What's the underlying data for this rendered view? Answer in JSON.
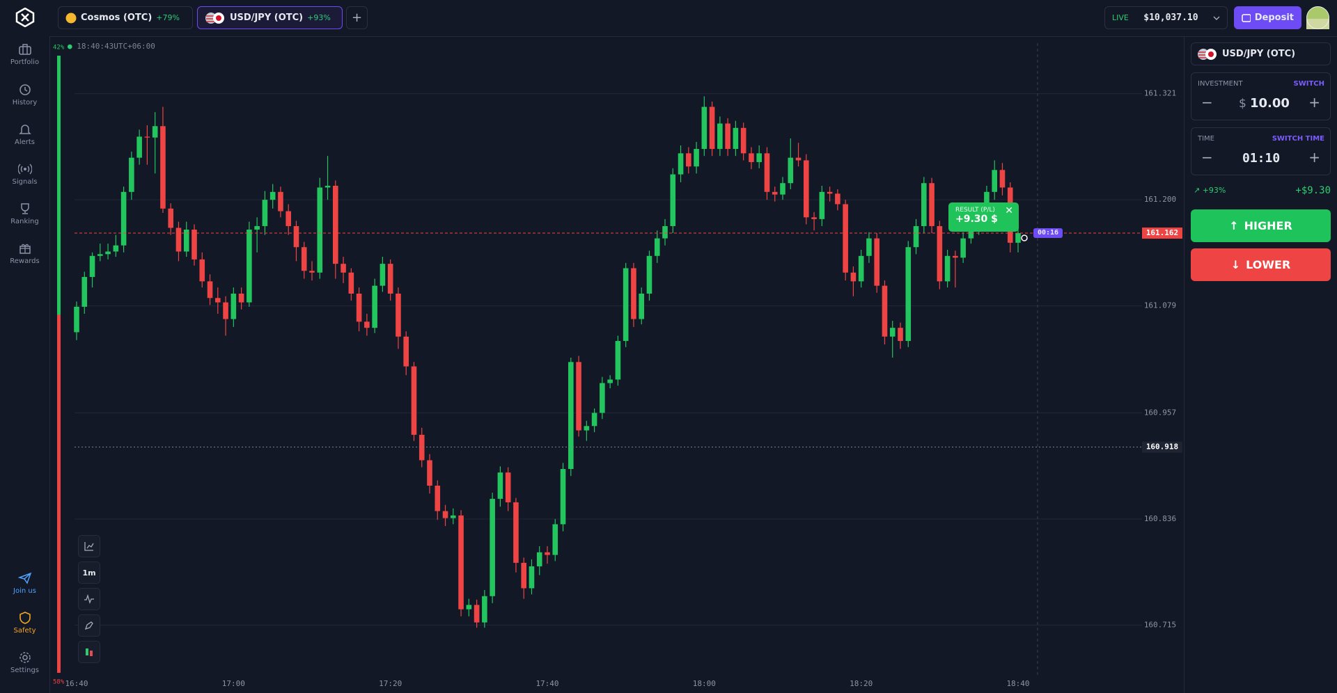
{
  "header": {
    "tabs": [
      {
        "name": "Cosmos (OTC)",
        "change": "+79%"
      },
      {
        "name": "USD/JPY (OTC)",
        "change": "+93%"
      }
    ],
    "account": "LIVE",
    "balance": "$10,037.10",
    "deposit": "Deposit"
  },
  "sidebar": {
    "top": [
      "Portfolio",
      "History",
      "Alerts",
      "Signals",
      "Ranking",
      "Rewards"
    ],
    "bottom": [
      "Join us",
      "Safety",
      "Settings"
    ]
  },
  "chart": {
    "type": "candlestick",
    "clock": "18:40:43UTC+06:00",
    "timeframe": "1m",
    "ylim": [
      160.655,
      161.385
    ],
    "yticks": [
      161.321,
      {
        "value": 161.2,
        "label": "161.200"
      },
      161.079,
      160.957,
      160.836,
      160.715
    ],
    "xticks": [
      "16:40",
      "17:00",
      "17:20",
      "17:40",
      "18:00",
      "18:20",
      "18:40"
    ],
    "current_price": 161.162,
    "marker_price": 160.918,
    "sentiment": {
      "up": {
        "value": 42,
        "label": "42%"
      },
      "down": {
        "value": 58,
        "label": "58%"
      }
    },
    "result": {
      "title": "RESULT (P/L)",
      "value": "+9.30 $"
    },
    "timer": "00:16",
    "ohlc": [
      [
        161.049,
        161.084,
        161.04,
        161.078
      ],
      [
        161.078,
        161.118,
        161.07,
        161.112
      ],
      [
        161.112,
        161.14,
        161.1,
        161.136
      ],
      [
        161.136,
        161.15,
        161.13,
        161.138
      ],
      [
        161.138,
        161.15,
        161.132,
        161.141
      ],
      [
        161.141,
        161.16,
        161.135,
        161.148
      ],
      [
        161.148,
        161.215,
        161.14,
        161.209
      ],
      [
        161.209,
        161.255,
        161.2,
        161.248
      ],
      [
        161.248,
        161.28,
        161.24,
        161.272
      ],
      [
        161.272,
        161.285,
        161.24,
        161.271
      ],
      [
        161.271,
        161.3,
        161.23,
        161.284
      ],
      [
        161.284,
        161.306,
        161.185,
        161.19
      ],
      [
        161.19,
        161.196,
        161.16,
        161.168
      ],
      [
        161.168,
        161.175,
        161.13,
        161.141
      ],
      [
        161.141,
        161.175,
        161.135,
        161.166
      ],
      [
        161.166,
        161.172,
        161.125,
        161.132
      ],
      [
        161.132,
        161.14,
        161.1,
        161.107
      ],
      [
        161.107,
        161.115,
        161.08,
        161.088
      ],
      [
        161.088,
        161.1,
        161.07,
        161.083
      ],
      [
        161.083,
        161.09,
        161.045,
        161.064
      ],
      [
        161.064,
        161.1,
        161.055,
        161.093
      ],
      [
        161.093,
        161.1,
        161.075,
        161.083
      ],
      [
        161.083,
        161.175,
        161.078,
        161.166
      ],
      [
        161.166,
        161.18,
        161.14,
        161.17
      ],
      [
        161.17,
        161.21,
        161.16,
        161.2
      ],
      [
        161.2,
        161.218,
        161.19,
        161.209
      ],
      [
        161.209,
        161.215,
        161.18,
        161.187
      ],
      [
        161.187,
        161.195,
        161.16,
        161.17
      ],
      [
        161.17,
        161.176,
        161.13,
        161.146
      ],
      [
        161.146,
        161.152,
        161.11,
        161.119
      ],
      [
        161.119,
        161.13,
        161.108,
        161.117
      ],
      [
        161.117,
        161.225,
        161.11,
        161.214
      ],
      [
        161.214,
        161.25,
        161.2,
        161.216
      ],
      [
        161.216,
        161.222,
        161.11,
        161.127
      ],
      [
        161.127,
        161.135,
        161.105,
        161.117
      ],
      [
        161.117,
        161.122,
        161.085,
        161.093
      ],
      [
        161.093,
        161.1,
        161.05,
        161.061
      ],
      [
        161.061,
        161.07,
        161.045,
        161.054
      ],
      [
        161.054,
        161.11,
        161.048,
        161.102
      ],
      [
        161.102,
        161.135,
        161.095,
        161.127
      ],
      [
        161.127,
        161.132,
        161.085,
        161.093
      ],
      [
        161.093,
        161.1,
        161.03,
        161.044
      ],
      [
        161.044,
        161.05,
        161.0,
        161.01
      ],
      [
        161.01,
        161.015,
        160.925,
        160.932
      ],
      [
        160.932,
        160.94,
        160.895,
        160.903
      ],
      [
        160.903,
        160.91,
        160.865,
        160.874
      ],
      [
        160.874,
        160.88,
        160.835,
        160.845
      ],
      [
        160.845,
        160.852,
        160.828,
        160.837
      ],
      [
        160.837,
        160.848,
        160.83,
        160.84
      ],
      [
        160.84,
        160.846,
        160.725,
        160.733
      ],
      [
        160.733,
        160.745,
        160.725,
        160.738
      ],
      [
        160.738,
        160.744,
        160.712,
        160.718
      ],
      [
        160.718,
        160.755,
        160.712,
        160.748
      ],
      [
        160.748,
        160.866,
        160.74,
        160.859
      ],
      [
        160.859,
        160.896,
        160.85,
        160.889
      ],
      [
        160.889,
        160.895,
        160.845,
        160.855
      ],
      [
        160.855,
        160.86,
        160.775,
        160.786
      ],
      [
        160.786,
        160.792,
        160.745,
        160.757
      ],
      [
        160.757,
        160.79,
        160.75,
        160.782
      ],
      [
        160.782,
        160.805,
        160.772,
        160.798
      ],
      [
        160.798,
        160.805,
        160.785,
        160.795
      ],
      [
        160.795,
        160.836,
        160.788,
        160.83
      ],
      [
        160.83,
        160.9,
        160.822,
        160.893
      ],
      [
        160.893,
        161.02,
        160.885,
        161.015
      ],
      [
        161.015,
        161.022,
        160.93,
        160.937
      ],
      [
        160.937,
        160.948,
        160.925,
        160.942
      ],
      [
        160.942,
        160.962,
        160.935,
        160.957
      ],
      [
        160.957,
        160.998,
        160.95,
        160.991
      ],
      [
        160.991,
        161.0,
        160.985,
        160.995
      ],
      [
        160.995,
        161.045,
        160.988,
        161.039
      ],
      [
        161.039,
        161.128,
        161.032,
        161.122
      ],
      [
        161.122,
        161.128,
        161.055,
        161.064
      ],
      [
        161.064,
        161.1,
        161.058,
        161.093
      ],
      [
        161.093,
        161.142,
        161.085,
        161.136
      ],
      [
        161.136,
        161.165,
        161.128,
        161.156
      ],
      [
        161.156,
        161.178,
        161.148,
        161.17
      ],
      [
        161.17,
        161.236,
        161.162,
        161.229
      ],
      [
        161.229,
        161.262,
        161.22,
        161.253
      ],
      [
        161.253,
        161.26,
        161.23,
        161.238
      ],
      [
        161.238,
        161.266,
        161.23,
        161.258
      ],
      [
        161.258,
        161.318,
        161.25,
        161.306
      ],
      [
        161.306,
        161.312,
        161.25,
        161.258
      ],
      [
        161.258,
        161.295,
        161.25,
        161.287
      ],
      [
        161.287,
        161.293,
        161.25,
        161.258
      ],
      [
        161.258,
        161.29,
        161.25,
        161.282
      ],
      [
        161.282,
        161.288,
        161.245,
        161.253
      ],
      [
        161.253,
        161.26,
        161.235,
        161.243
      ],
      [
        161.243,
        161.262,
        161.236,
        161.253
      ],
      [
        161.253,
        161.26,
        161.2,
        161.209
      ],
      [
        161.209,
        161.215,
        161.198,
        161.206
      ],
      [
        161.206,
        161.226,
        161.2,
        161.219
      ],
      [
        161.219,
        161.27,
        161.212,
        161.248
      ],
      [
        161.248,
        161.265,
        161.238,
        161.245
      ],
      [
        161.245,
        161.252,
        161.172,
        161.18
      ],
      [
        161.18,
        161.186,
        161.165,
        161.178
      ],
      [
        161.178,
        161.216,
        161.17,
        161.209
      ],
      [
        161.209,
        161.215,
        161.198,
        161.207
      ],
      [
        161.207,
        161.212,
        161.188,
        161.195
      ],
      [
        161.195,
        161.2,
        161.108,
        161.117
      ],
      [
        161.117,
        161.124,
        161.09,
        161.107
      ],
      [
        161.107,
        161.143,
        161.1,
        161.136
      ],
      [
        161.136,
        161.163,
        161.128,
        161.156
      ],
      [
        161.156,
        161.162,
        161.094,
        161.102
      ],
      [
        161.102,
        161.108,
        161.035,
        161.044
      ],
      [
        161.044,
        161.062,
        161.02,
        161.054
      ],
      [
        161.054,
        161.06,
        161.03,
        161.039
      ],
      [
        161.039,
        161.153,
        161.032,
        161.146
      ],
      [
        161.146,
        161.178,
        161.138,
        161.17
      ],
      [
        161.17,
        161.226,
        161.162,
        161.219
      ],
      [
        161.219,
        161.225,
        161.162,
        161.17
      ],
      [
        161.17,
        161.176,
        161.098,
        161.107
      ],
      [
        161.107,
        161.143,
        161.1,
        161.136
      ],
      [
        161.136,
        161.142,
        161.1,
        161.134
      ],
      [
        161.134,
        161.163,
        161.128,
        161.156
      ],
      [
        161.156,
        161.172,
        161.15,
        161.166
      ],
      [
        161.166,
        161.182,
        161.16,
        161.175
      ],
      [
        161.175,
        161.216,
        161.168,
        161.209
      ],
      [
        161.209,
        161.245,
        161.2,
        161.234
      ],
      [
        161.234,
        161.242,
        161.205,
        161.214
      ],
      [
        161.214,
        161.22,
        161.14,
        161.151
      ],
      [
        161.151,
        161.168,
        161.14,
        161.162
      ]
    ]
  },
  "panel": {
    "pair": "USD/JPY (OTC)",
    "investment": {
      "label": "INVESTMENT",
      "action": "SWITCH",
      "currency": "$",
      "amount": "10.00"
    },
    "time": {
      "label": "TIME",
      "action": "SWITCH TIME",
      "value": "01:10"
    },
    "payout": "+93%",
    "profit": "+$9.30",
    "higher": "HIGHER",
    "lower": "LOWER"
  }
}
